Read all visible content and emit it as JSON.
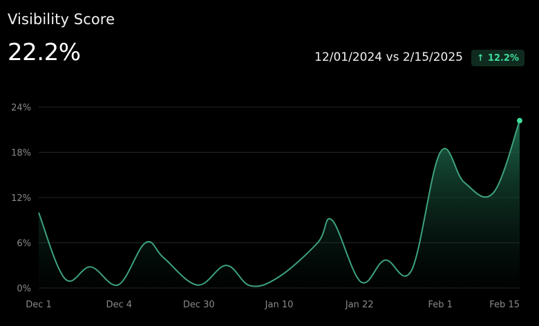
{
  "header": {
    "title": "Visibility Score",
    "value": "22.2%",
    "range": "12/01/2024 vs 2/15/2025",
    "change": "12.2%",
    "change_icon": "arrow-up-icon"
  },
  "colors": {
    "background": "#000000",
    "line": "#3ea37d",
    "area_top": "#1f6b4e",
    "badge_bg": "#0f2b1f",
    "badge_text": "#3fdc9a",
    "grid": "#262626",
    "axis_text": "#8a8a8a",
    "end_point": "#3fdc9a"
  },
  "chart_data": {
    "type": "area",
    "title": "Visibility Score",
    "xlabel": "",
    "ylabel": "",
    "x_ticks": [
      "Dec 1",
      "Dec 4",
      "Dec 30",
      "Jan 10",
      "Jan 22",
      "Feb 1",
      "Feb 15"
    ],
    "y_ticks": [
      "0%",
      "6%",
      "12%",
      "18%",
      "24%"
    ],
    "ylim": [
      0,
      24
    ],
    "grid": true,
    "series": [
      {
        "values": [
          {
            "x": 0.0,
            "y": 10.0
          },
          {
            "x": 0.055,
            "y": 1.2
          },
          {
            "x": 0.108,
            "y": 2.8
          },
          {
            "x": 0.165,
            "y": 0.4
          },
          {
            "x": 0.222,
            "y": 6.0
          },
          {
            "x": 0.26,
            "y": 4.0
          },
          {
            "x": 0.33,
            "y": 0.4
          },
          {
            "x": 0.39,
            "y": 3.0
          },
          {
            "x": 0.44,
            "y": 0.3
          },
          {
            "x": 0.5,
            "y": 1.5
          },
          {
            "x": 0.58,
            "y": 6.0
          },
          {
            "x": 0.61,
            "y": 9.0
          },
          {
            "x": 0.67,
            "y": 0.8
          },
          {
            "x": 0.72,
            "y": 3.7
          },
          {
            "x": 0.775,
            "y": 2.3
          },
          {
            "x": 0.835,
            "y": 18.0
          },
          {
            "x": 0.885,
            "y": 14.0
          },
          {
            "x": 0.945,
            "y": 12.6
          },
          {
            "x": 1.0,
            "y": 22.2
          }
        ]
      }
    ],
    "end_marker": true
  }
}
